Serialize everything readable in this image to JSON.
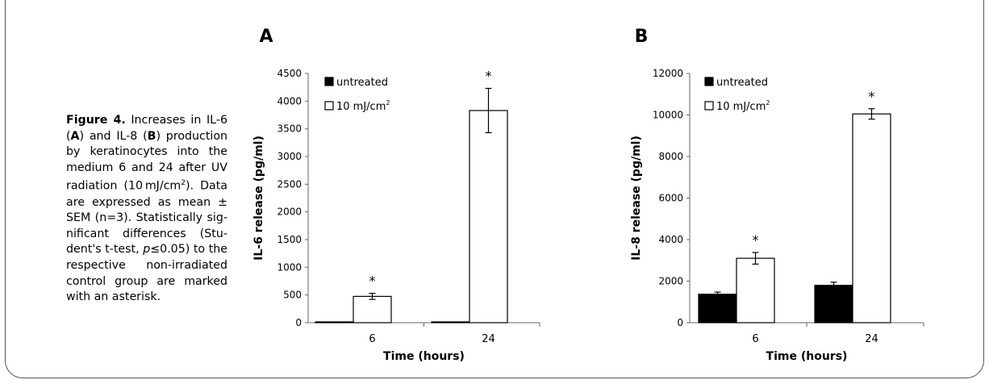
{
  "caption": {
    "figure_label": "Figure 4.",
    "part1": " Increases in IL-6 (",
    "a": "A",
    "part2": ") and IL-8 (",
    "b": "B",
    "part3": ") production by keratinocytes into the medium 6 and 24 after UV radiation (10 mJ/cm",
    "sup": "2",
    "part4": "). Data are expressed as mean ± SEM (n=3). Statistically sig-nificant differences (Stu-dent's t-test, ",
    "p": "p",
    "part5": "≤0.05) to the respective non-irradiated control group are marked with an asterisk."
  },
  "chart_data": [
    {
      "type": "bar",
      "panel_label": "A",
      "categories": [
        "6",
        "24"
      ],
      "xlabel": "Time (hours)",
      "ylabel": "IL-6 release (pg/ml)",
      "ylim": [
        0,
        4500
      ],
      "yticks": [
        "0",
        "500",
        "1000",
        "1500",
        "2000",
        "2500",
        "3000",
        "3500",
        "4000",
        "4500"
      ],
      "grid": false,
      "legend": "top-left",
      "series": [
        {
          "name": "untreated",
          "values": [
            15,
            15
          ],
          "errors": [
            0,
            0
          ],
          "color": "#000000"
        },
        {
          "name": "10 mJ/cm",
          "name_sup": "2",
          "values": [
            475,
            3830
          ],
          "errors": [
            55,
            400
          ],
          "color": "#ffffff"
        }
      ],
      "annotations": [
        {
          "series": 1,
          "category": 0,
          "text": "*"
        },
        {
          "series": 1,
          "category": 1,
          "text": "*"
        }
      ]
    },
    {
      "type": "bar",
      "panel_label": "B",
      "categories": [
        "6",
        "24"
      ],
      "xlabel": "Time (hours)",
      "ylabel": "IL-8 release (pg/ml)",
      "ylim": [
        0,
        12000
      ],
      "yticks": [
        "0",
        "2000",
        "4000",
        "6000",
        "8000",
        "10000",
        "12000"
      ],
      "grid": false,
      "legend": "top-left",
      "series": [
        {
          "name": "untreated",
          "values": [
            1370,
            1800
          ],
          "errors": [
            100,
            150
          ],
          "color": "#000000"
        },
        {
          "name": "10 mJ/cm",
          "name_sup": "2",
          "values": [
            3100,
            10050
          ],
          "errors": [
            280,
            250
          ],
          "color": "#ffffff"
        }
      ],
      "annotations": [
        {
          "series": 1,
          "category": 0,
          "text": "*"
        },
        {
          "series": 1,
          "category": 1,
          "text": "*"
        }
      ]
    }
  ]
}
